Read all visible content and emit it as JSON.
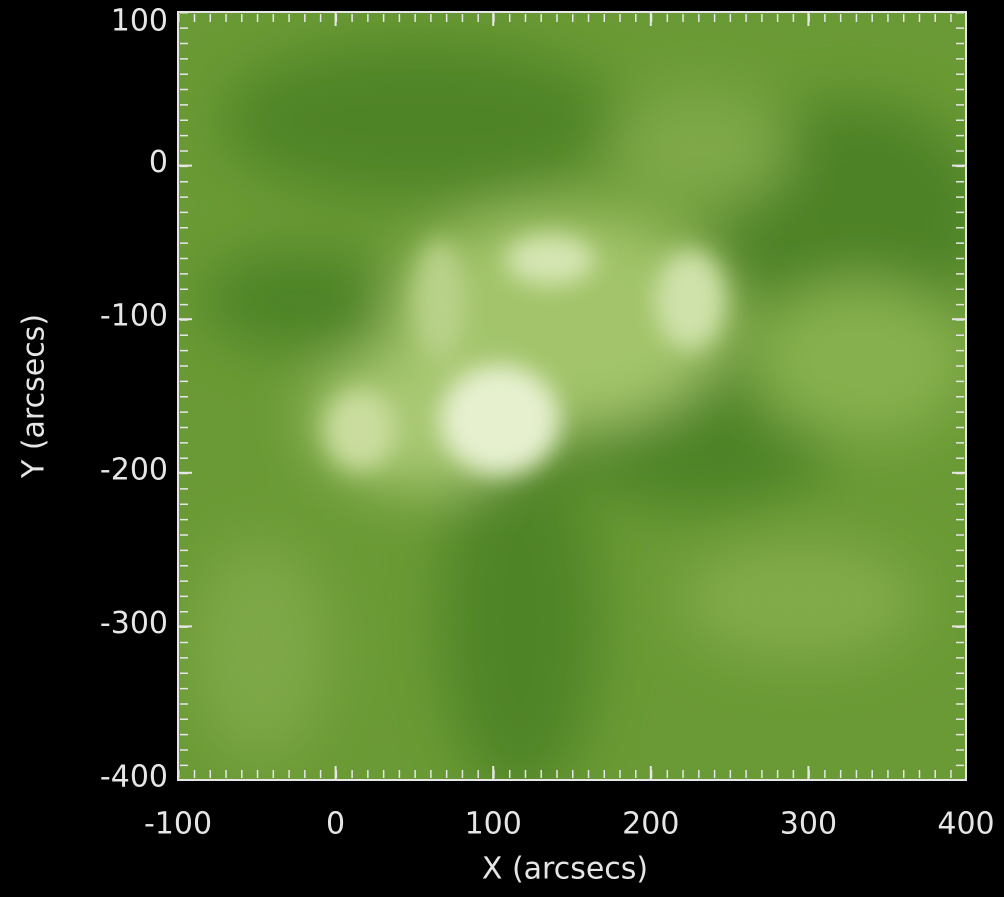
{
  "chart_data": {
    "type": "image",
    "x_label": "X (arcsecs)",
    "y_label": "Y (arcsecs)",
    "xlim": [
      -100,
      400
    ],
    "xticks": [
      -100,
      0,
      100,
      200,
      300,
      400
    ],
    "ylim": [
      -400,
      100
    ],
    "yticks": [
      -400,
      -300,
      -200,
      -100,
      0,
      100
    ]
  }
}
